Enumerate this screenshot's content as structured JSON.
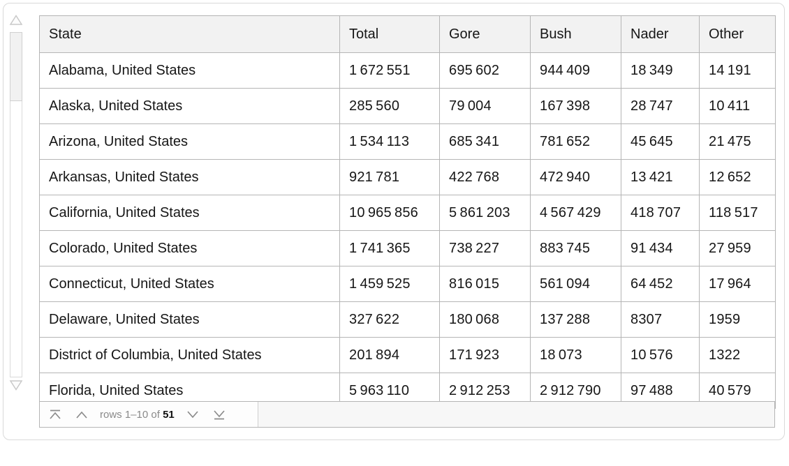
{
  "colors": {
    "entity_text": "#796b5f",
    "header_bg": "#f2f2f2",
    "table_border": "#b5b5b5",
    "footer_bg": "#f7f7f7",
    "icon_gray": "#8b8b8b",
    "page_bg": "#ffffff"
  },
  "table": {
    "columns": [
      "State",
      "Total",
      "Gore",
      "Bush",
      "Nader",
      "Other"
    ],
    "rows": [
      {
        "state": "Alabama, United States",
        "values": [
          1672551,
          695602,
          944409,
          18349,
          14191
        ]
      },
      {
        "state": "Alaska, United States",
        "values": [
          285560,
          79004,
          167398,
          28747,
          10411
        ]
      },
      {
        "state": "Arizona, United States",
        "values": [
          1534113,
          685341,
          781652,
          45645,
          21475
        ]
      },
      {
        "state": "Arkansas, United States",
        "values": [
          921781,
          422768,
          472940,
          13421,
          12652
        ]
      },
      {
        "state": "California, United States",
        "values": [
          10965856,
          5861203,
          4567429,
          418707,
          118517
        ]
      },
      {
        "state": "Colorado, United States",
        "values": [
          1741365,
          738227,
          883745,
          91434,
          27959
        ]
      },
      {
        "state": "Connecticut, United States",
        "values": [
          1459525,
          816015,
          561094,
          64452,
          17964
        ]
      },
      {
        "state": "Delaware, United States",
        "values": [
          327622,
          180068,
          137288,
          8307,
          1959
        ]
      },
      {
        "state": "District of Columbia, United States",
        "values": [
          201894,
          171923,
          18073,
          10576,
          1322
        ]
      },
      {
        "state": "Florida, United States",
        "values": [
          5963110,
          2912253,
          2912790,
          97488,
          40579
        ]
      }
    ]
  },
  "pagination": {
    "prefix": "rows 1–10 of",
    "total": "51",
    "icons": {
      "first": "chevron-up-to-line",
      "prev": "chevron-up",
      "next": "chevron-down",
      "last": "chevron-down-to-line"
    }
  },
  "scrollbar": {
    "up_icon": "triangle-up",
    "down_icon": "triangle-down",
    "visible_fraction": "10 of 51 rows"
  }
}
